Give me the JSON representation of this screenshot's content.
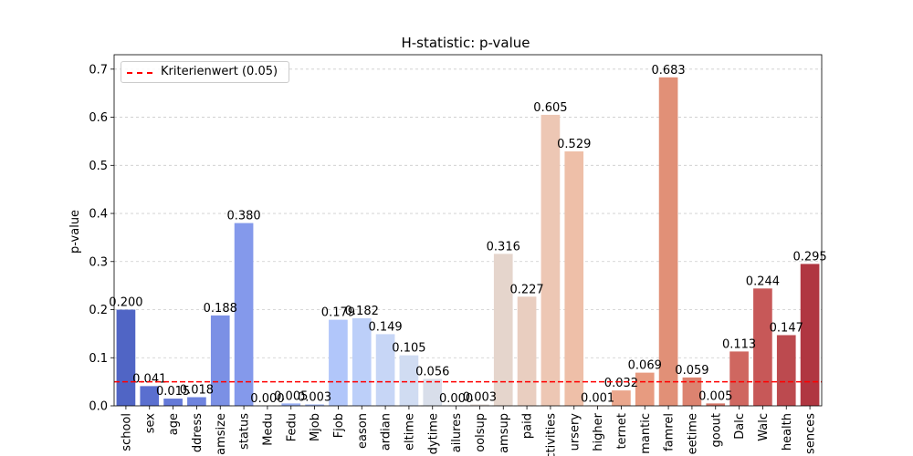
{
  "chart_data": {
    "type": "bar",
    "title": "H-statistic:  p-value",
    "xlabel": "",
    "ylabel": "p-value",
    "ylim": [
      0,
      0.73
    ],
    "yticks": [
      "0.0",
      "0.1",
      "0.2",
      "0.3",
      "0.4",
      "0.5",
      "0.6",
      "0.7"
    ],
    "grid": "y, dashed",
    "legend_position": "top-left",
    "reference_line": {
      "label": "Kriterienwert (0.05)",
      "value": 0.05,
      "color": "#ff0000"
    },
    "categories": [
      "school",
      "sex",
      "age",
      "address",
      "famsize",
      "Pstatus",
      "Medu",
      "Fedu",
      "Mjob",
      "Fjob",
      "reason",
      "guardian",
      "traveltime",
      "studytime",
      "failures",
      "schoolsup",
      "famsup",
      "paid",
      "activities",
      "nursery",
      "higher",
      "internet",
      "romantic",
      "famrel",
      "freetime",
      "goout",
      "Dalc",
      "Walc",
      "health",
      "absences"
    ],
    "tick_labels": [
      "school",
      "sex",
      "age",
      "ddress",
      "amsize",
      "status",
      "Medu",
      "Fedu",
      "Mjob",
      "Fjob",
      "eason",
      "ardian",
      "eltime",
      "dytime",
      "ailures",
      "oolsup",
      "amsup",
      "paid",
      "ctivities",
      "ursery",
      "higher",
      "ternet",
      "mantic",
      "famrel",
      "eetime",
      "goout",
      "Dalc",
      "Walc",
      "health",
      "sences"
    ],
    "values": [
      0.2,
      0.041,
      0.015,
      0.018,
      0.188,
      0.38,
      0.0,
      0.005,
      0.003,
      0.179,
      0.182,
      0.149,
      0.105,
      0.056,
      0.0,
      0.003,
      0.316,
      0.227,
      0.605,
      0.529,
      0.001,
      0.032,
      0.069,
      0.683,
      0.059,
      0.005,
      0.113,
      0.244,
      0.147,
      0.295
    ],
    "value_labels": [
      "0.200",
      "0.041",
      "0.015",
      "0.018",
      "0.188",
      "0.380",
      "0.000",
      "0.005",
      "0.003",
      "0.179",
      "0.182",
      "0.149",
      "0.105",
      "0.056",
      "0.000",
      "0.003",
      "0.316",
      "0.227",
      "0.605",
      "0.529",
      "0.001",
      "0.032",
      "0.069",
      "0.683",
      "0.059",
      "0.005",
      "0.113",
      "0.244",
      "0.147",
      "0.295"
    ],
    "colors": [
      "#5065c5",
      "#5a6fcf",
      "#6479d8",
      "#6e83de",
      "#7b90e5",
      "#8499eb",
      "#90a5f0",
      "#9ab0f4",
      "#a6bbf8",
      "#b1c6fa",
      "#bccff9",
      "#c7d6f6",
      "#d0dcf2",
      "#d8deea",
      "#dedddd",
      "#e3dad7",
      "#e5d5cc",
      "#e9cec0",
      "#edc7b4",
      "#eebfa8",
      "#edb39a",
      "#eaa68c",
      "#e79b80",
      "#e19077",
      "#dc8370",
      "#d67568",
      "#cf6760",
      "#c75858",
      "#bc4a4f",
      "#b03641"
    ]
  }
}
